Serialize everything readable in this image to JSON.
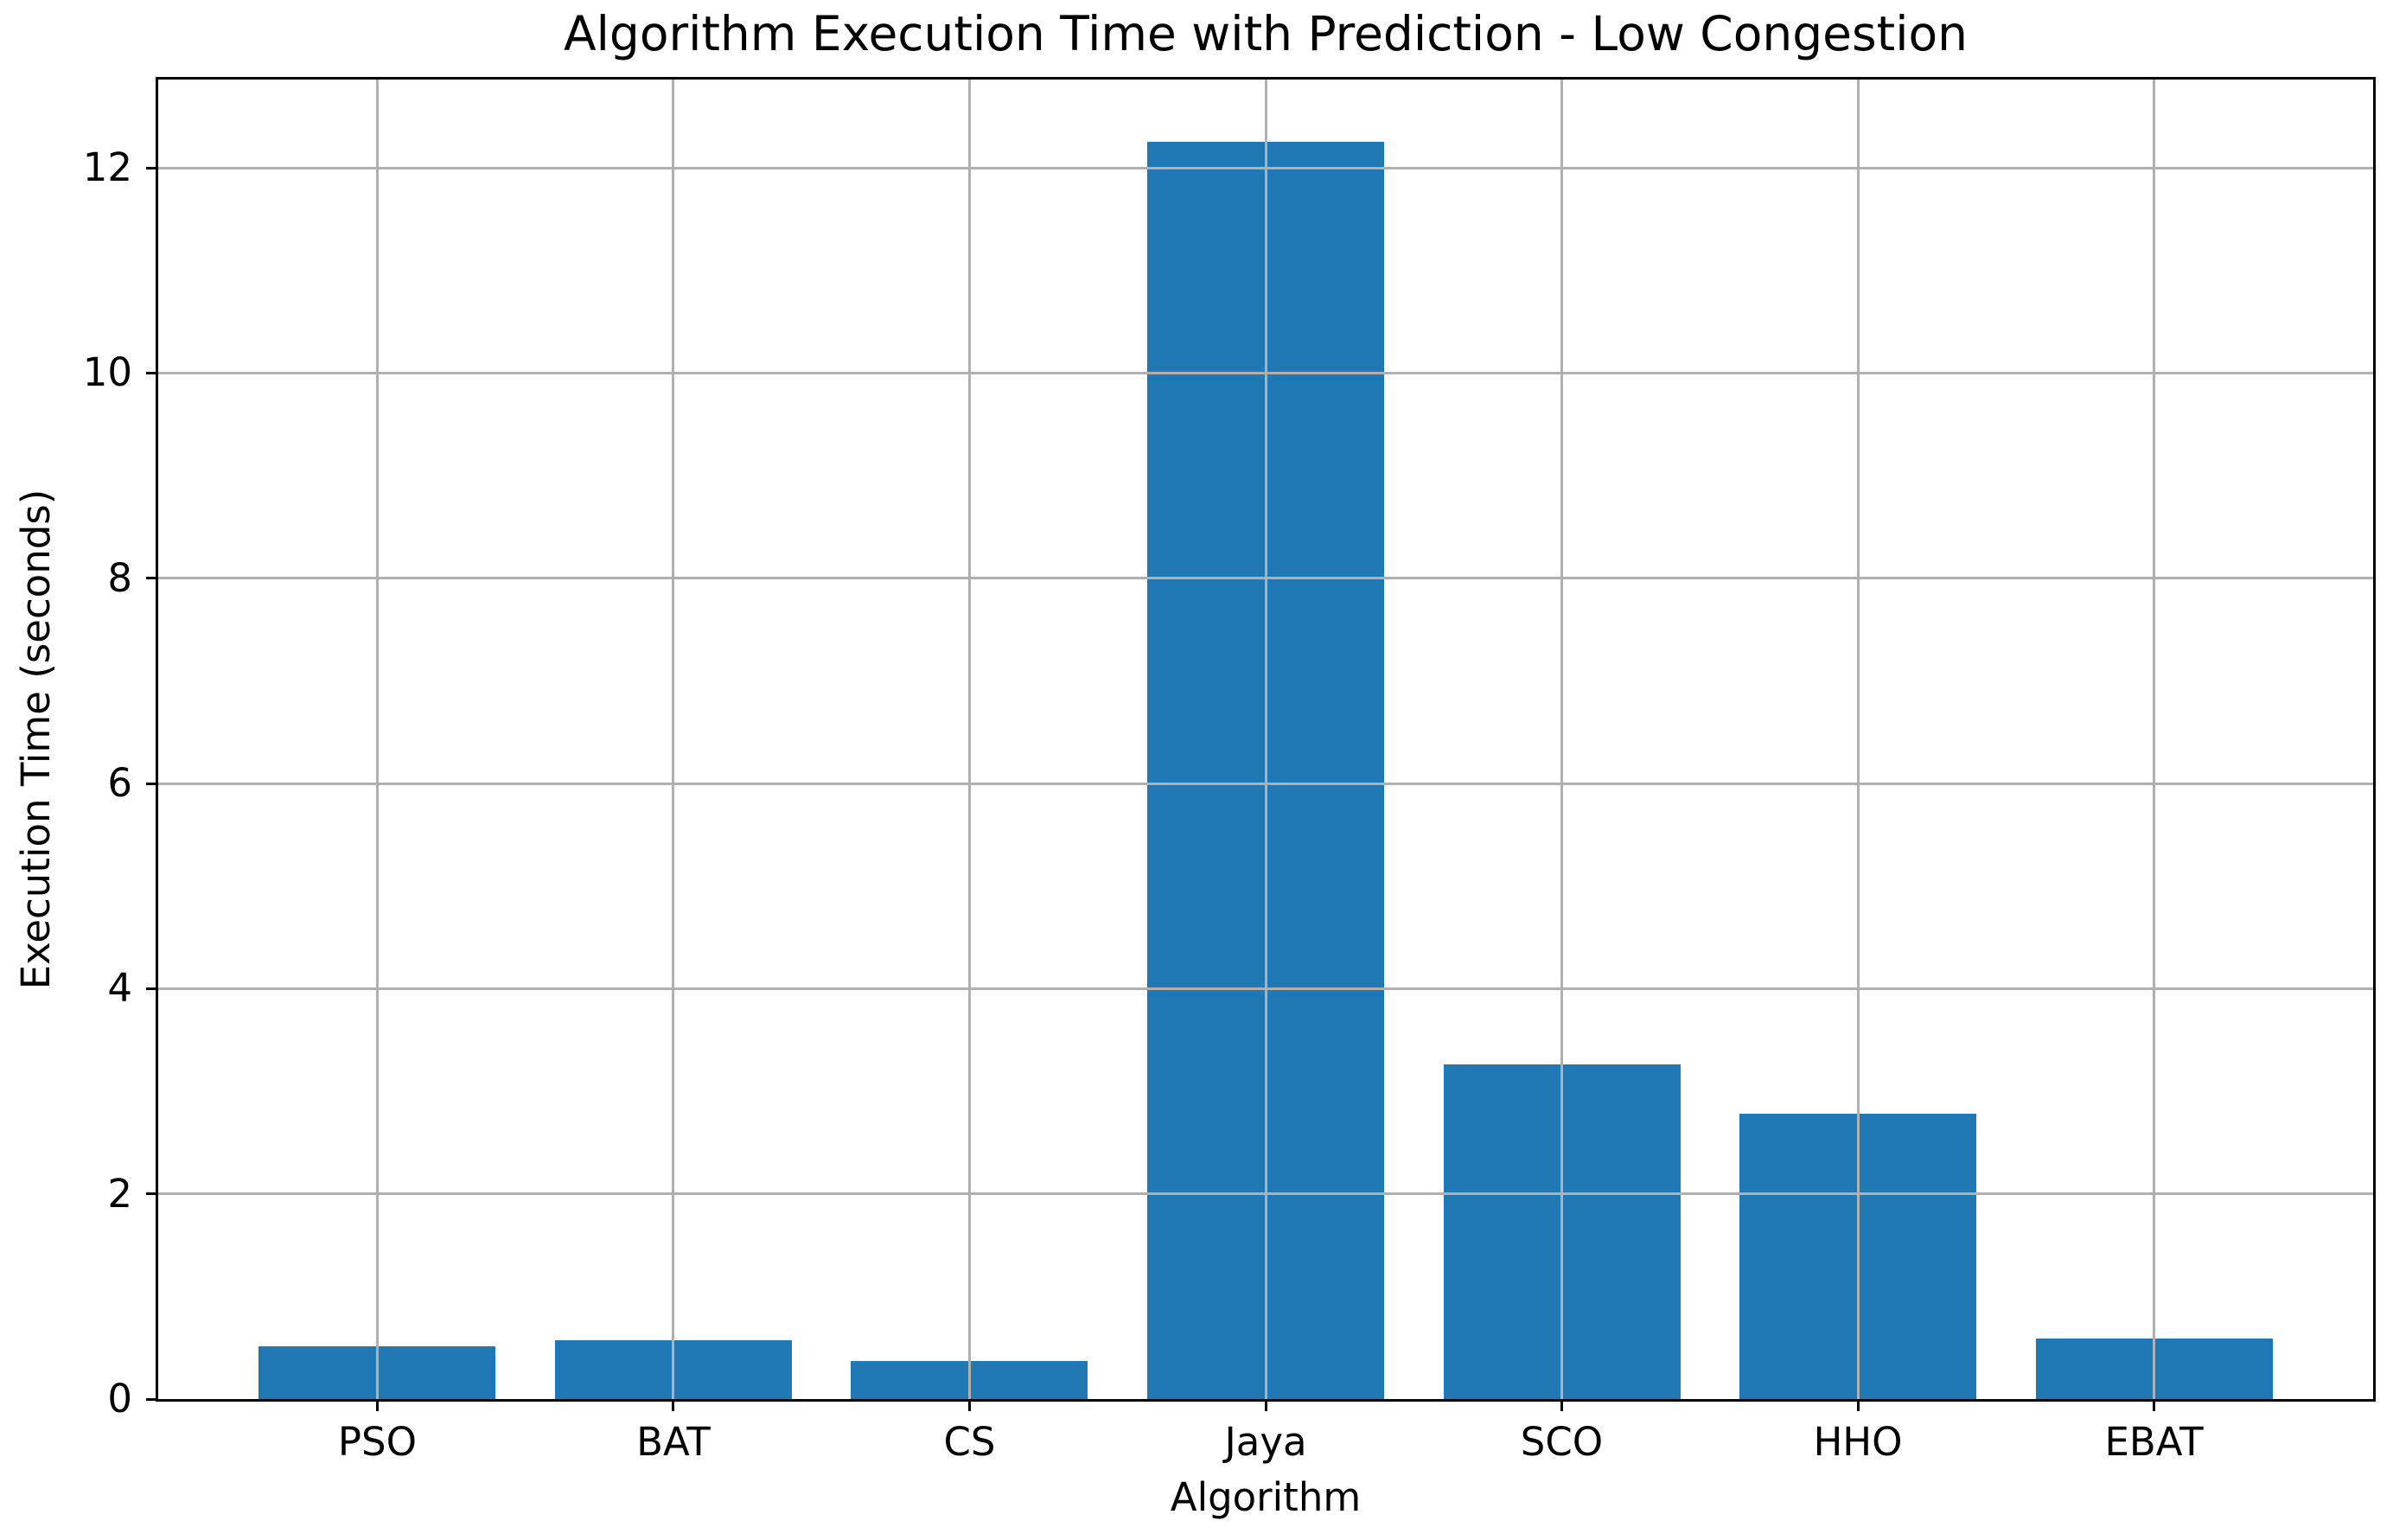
{
  "chart_data": {
    "type": "bar",
    "title": "Algorithm Execution Time with Prediction - Low Congestion",
    "xlabel": "Algorithm",
    "ylabel": "Execution Time (seconds)",
    "categories": [
      "PSO",
      "BAT",
      "CS",
      "Jaya",
      "SCO",
      "HHO",
      "EBAT"
    ],
    "values": [
      0.51,
      0.57,
      0.37,
      12.25,
      3.26,
      2.78,
      0.59
    ],
    "yticks": [
      0,
      2,
      4,
      6,
      8,
      10,
      12
    ],
    "ylim": [
      0,
      12.86
    ],
    "xlim": [
      -0.74,
      6.74
    ],
    "bar_width": 0.8,
    "bar_color": "#1f77b4",
    "grid_color": "#b0b0b0",
    "axis_color": "#000000",
    "background_color": "#ffffff",
    "grid": "on",
    "grid_above_bars": true,
    "legend": "none"
  }
}
